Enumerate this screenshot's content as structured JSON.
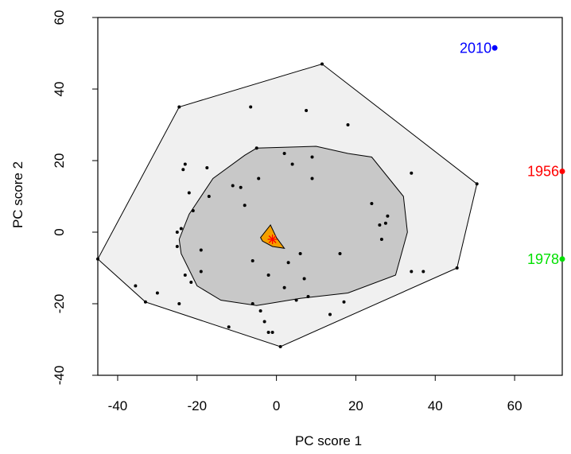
{
  "chart_data": {
    "type": "scatter",
    "title": "",
    "xlabel": "PC score 1",
    "ylabel": "PC score 2",
    "xlim": [
      -45,
      72
    ],
    "ylim": [
      -40,
      60
    ],
    "xticks": [
      -40,
      -20,
      0,
      20,
      40,
      60
    ],
    "yticks": [
      -40,
      -20,
      0,
      20,
      40,
      60
    ],
    "xtick_labels": [
      "-40",
      "-20",
      "0",
      "20",
      "40",
      "60"
    ],
    "ytick_labels": [
      "-40",
      "-20",
      "0",
      "20",
      "40",
      "60"
    ],
    "grid": false,
    "legend": "none",
    "colors": {
      "outer_hull": "#f0f0f0",
      "inner_hull": "#c8c8c8",
      "median_region": "#f5a000",
      "median_marker": "#ff0000",
      "points": "#000000"
    },
    "outer_hull": [
      [
        -45,
        -7.5
      ],
      [
        -24.5,
        35
      ],
      [
        11.5,
        47
      ],
      [
        50.5,
        13.5
      ],
      [
        45.5,
        -10
      ],
      [
        1,
        -32
      ],
      [
        -33,
        -19.5
      ]
    ],
    "inner_hull": [
      [
        -24.5,
        -2
      ],
      [
        -22,
        5
      ],
      [
        -16,
        15
      ],
      [
        -8,
        21.5
      ],
      [
        -5,
        23.5
      ],
      [
        10,
        24
      ],
      [
        18,
        22
      ],
      [
        24,
        21
      ],
      [
        32,
        10
      ],
      [
        33,
        0
      ],
      [
        30,
        -12
      ],
      [
        18,
        -17
      ],
      [
        6,
        -18.5
      ],
      [
        -5,
        -20.5
      ],
      [
        -14,
        -19
      ],
      [
        -20,
        -15
      ],
      [
        -24,
        -6
      ]
    ],
    "median_region": [
      [
        -4,
        -1.5
      ],
      [
        -1.5,
        2
      ],
      [
        0,
        -1.5
      ],
      [
        2,
        -4.5
      ],
      [
        -1,
        -4
      ],
      [
        -3.5,
        -2.5
      ]
    ],
    "median": [
      -1,
      -2
    ],
    "points": [
      [
        -45,
        -7.5
      ],
      [
        -35.5,
        -15
      ],
      [
        -33,
        -19.5
      ],
      [
        -30,
        -17
      ],
      [
        -24.5,
        35
      ],
      [
        -24.5,
        -20
      ],
      [
        -23,
        19
      ],
      [
        -23.5,
        17.5
      ],
      [
        -22,
        11
      ],
      [
        -23,
        -12
      ],
      [
        -21,
        6
      ],
      [
        -21.5,
        -14
      ],
      [
        -24,
        1
      ],
      [
        -25,
        0
      ],
      [
        -25,
        -4
      ],
      [
        -17.5,
        18
      ],
      [
        -17,
        10
      ],
      [
        -19,
        -11
      ],
      [
        -19,
        -5
      ],
      [
        -11,
        13
      ],
      [
        -12,
        -26.5
      ],
      [
        -9,
        12.5
      ],
      [
        -8,
        7.5
      ],
      [
        -6.5,
        35
      ],
      [
        -6,
        -8
      ],
      [
        -5,
        23.5
      ],
      [
        -4.5,
        15
      ],
      [
        -6,
        -20
      ],
      [
        -4,
        -22
      ],
      [
        -3,
        -25
      ],
      [
        -2,
        -28
      ],
      [
        2,
        22
      ],
      [
        4,
        19
      ],
      [
        2,
        -15.5
      ],
      [
        3,
        -8.5
      ],
      [
        -2,
        -12
      ],
      [
        5,
        -19
      ],
      [
        6,
        -6
      ],
      [
        7.5,
        34
      ],
      [
        7,
        -13
      ],
      [
        9,
        21
      ],
      [
        9,
        15
      ],
      [
        8,
        -18
      ],
      [
        11.5,
        47
      ],
      [
        13.5,
        -23
      ],
      [
        16,
        -6
      ],
      [
        17,
        -19.5
      ],
      [
        18,
        30
      ],
      [
        24,
        8
      ],
      [
        26,
        2
      ],
      [
        26.5,
        -2
      ],
      [
        28,
        4.5
      ],
      [
        27.5,
        2.5
      ],
      [
        34,
        16.5
      ],
      [
        34,
        -11
      ],
      [
        37,
        -11
      ],
      [
        45.5,
        -10
      ],
      [
        50.5,
        13.5
      ],
      [
        1,
        -32
      ],
      [
        -1,
        -28
      ]
    ],
    "outliers": [
      {
        "label": "2010",
        "x": 55,
        "y": 51.5,
        "color": "#0000ff"
      },
      {
        "label": "1956",
        "x": 72,
        "y": 17,
        "color": "#ff0000"
      },
      {
        "label": "1978",
        "x": 72,
        "y": -7.5,
        "color": "#00e000"
      }
    ]
  }
}
